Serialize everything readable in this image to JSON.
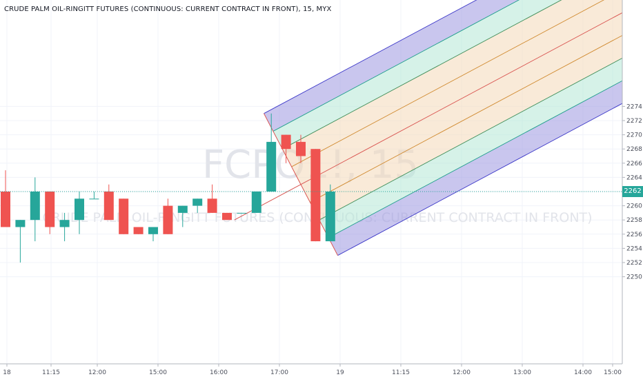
{
  "header": {
    "title": "CRUDE PALM OIL-RINGITT FUTURES (CONTINUOUS: CURRENT CONTRACT IN FRONT), 15, MYX"
  },
  "watermark": {
    "symbol": "FCPO1!, 15",
    "description": "CRUDE PALM OIL-RINGITT FUTURES (CONTINUOUS: CURRENT CONTRACT IN FRONT)"
  },
  "colors": {
    "up": "#26a69a",
    "down": "#ef5350",
    "band_blue": "#9c98e0",
    "band_green": "#b4e8d6",
    "band_orange": "#f4d8b8"
  },
  "chart_data": {
    "type": "candlestick",
    "y_ticks": [
      "2250",
      "2252",
      "2254",
      "2256",
      "2258",
      "2260",
      "2262",
      "2264",
      "2266",
      "2268",
      "2270",
      "2272",
      "2274"
    ],
    "x_ticks": [
      "18",
      "11:15",
      "12:00",
      "15:00",
      "16:00",
      "17:00",
      "19",
      "11:15",
      "12:00",
      "13:00",
      "14:00",
      "15:00"
    ],
    "ylim": [
      2250,
      2276
    ],
    "last_price": "2262",
    "candles": [
      {
        "o": 2262,
        "h": 2265,
        "l": 2257,
        "c": 2257
      },
      {
        "o": 2257,
        "h": 2258,
        "l": 2252,
        "c": 2258
      },
      {
        "o": 2258,
        "h": 2264,
        "l": 2255,
        "c": 2262
      },
      {
        "o": 2262,
        "h": 2262,
        "l": 2256,
        "c": 2257
      },
      {
        "o": 2257,
        "h": 2259,
        "l": 2255,
        "c": 2258
      },
      {
        "o": 2258,
        "h": 2262,
        "l": 2256,
        "c": 2261
      },
      {
        "o": 2261,
        "h": 2262,
        "l": 2261,
        "c": 2261
      },
      {
        "o": 2262,
        "h": 2263,
        "l": 2258,
        "c": 2258
      },
      {
        "o": 2261,
        "h": 2261,
        "l": 2256,
        "c": 2256
      },
      {
        "o": 2257,
        "h": 2257,
        "l": 2256,
        "c": 2256
      },
      {
        "o": 2256,
        "h": 2257,
        "l": 2255,
        "c": 2257
      },
      {
        "o": 2260,
        "h": 2261,
        "l": 2256,
        "c": 2256
      },
      {
        "o": 2259,
        "h": 2260,
        "l": 2257,
        "c": 2260
      },
      {
        "o": 2260,
        "h": 2261,
        "l": 2259,
        "c": 2261
      },
      {
        "o": 2261,
        "h": 2263,
        "l": 2259,
        "c": 2259
      },
      {
        "o": 2259,
        "h": 2259,
        "l": 2258,
        "c": 2258
      },
      {
        "o": 2259,
        "h": 2259,
        "l": 2259,
        "c": 2259
      },
      {
        "o": 2259,
        "h": 2262,
        "l": 2259,
        "c": 2262
      },
      {
        "o": 2262,
        "h": 2273,
        "l": 2262,
        "c": 2269
      },
      {
        "o": 2270,
        "h": 2270,
        "l": 2266,
        "c": 2268
      },
      {
        "o": 2269,
        "h": 2270,
        "l": 2266,
        "c": 2267
      },
      {
        "o": 2268,
        "h": 2268,
        "l": 2255,
        "c": 2255
      },
      {
        "o": 2255,
        "h": 2263,
        "l": 2255,
        "c": 2262
      }
    ],
    "pitchfork": {
      "p1": [
        17.5,
        2273
      ],
      "p2": [
        22.5,
        2253
      ],
      "handle_start": [
        15.5,
        2258
      ],
      "levels": [
        -1,
        -0.75,
        -0.5,
        -0.25,
        0,
        0.25,
        0.5,
        0.75,
        1
      ]
    }
  }
}
